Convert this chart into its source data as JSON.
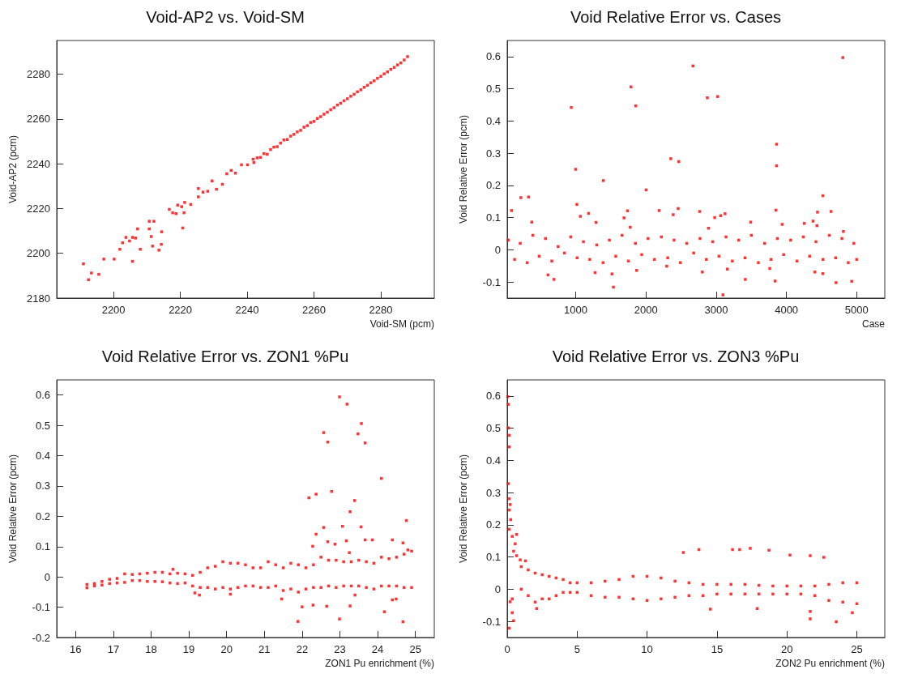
{
  "chart_data": [
    {
      "type": "scatter",
      "title": "Void-AP2 vs. Void-SM",
      "xlabel": "Void-SM (pcm)",
      "ylabel": "Void-AP2 (pcm)",
      "color": "#ff0000",
      "marker": "square",
      "xlim": [
        2183,
        2296
      ],
      "ylim": [
        2180,
        2295
      ],
      "xticks": [
        2200,
        2220,
        2240,
        2260,
        2280
      ],
      "yticks": [
        2180,
        2200,
        2220,
        2240,
        2260,
        2280
      ],
      "x": [
        2191.0,
        2192.5,
        2193.4,
        2195.6,
        2197.1,
        2200.2,
        2201.9,
        2202.7,
        2203.7,
        2204.8,
        2205.7,
        2206.6,
        2205.7,
        2207.2,
        2208.0,
        2210.7,
        2210.7,
        2211.3,
        2211.7,
        2212.1,
        2213.6,
        2214.3,
        2214.4,
        2216.7,
        2217.7,
        2218.7,
        2219.2,
        2220.4,
        2221.3,
        2220.7,
        2221.1,
        2223.1,
        2225.4,
        2225.4,
        2226.8,
        2228.2,
        2229.5,
        2230.8,
        2232.6,
        2233.9,
        2235.2,
        2236.5,
        2238.3,
        2240.1,
        2241.8,
        2242,
        2243,
        2244,
        2245,
        2246,
        2247,
        2248,
        2249,
        2250,
        2251,
        2252,
        2253,
        2254,
        2255,
        2256,
        2257,
        2258,
        2259,
        2260,
        2261,
        2262,
        2263,
        2264,
        2265,
        2266,
        2267,
        2268,
        2269,
        2270,
        2271,
        2272,
        2273,
        2274,
        2275,
        2276,
        2277,
        2278,
        2279,
        2280,
        2281,
        2282,
        2283,
        2284,
        2285,
        2286,
        2287,
        2288
      ],
      "values": [
        2195.3,
        2188.2,
        2191.2,
        2190.6,
        2197.4,
        2197.4,
        2201.8,
        2204.7,
        2207.1,
        2205.5,
        2207.1,
        2206.8,
        2196.4,
        2210.9,
        2201.8,
        2214.3,
        2210.9,
        2207.5,
        2203.2,
        2214.3,
        2201.4,
        2204.0,
        2209.6,
        2219.6,
        2218.1,
        2217.7,
        2221.5,
        2220.8,
        2222.7,
        2211.3,
        2218.1,
        2221.8,
        2228.9,
        2225.2,
        2227.3,
        2227.7,
        2232.3,
        2228.6,
        2230.8,
        2235.5,
        2237.0,
        2235.8,
        2239.5,
        2239.5,
        2242.0,
        2240.5,
        2242.6,
        2242.8,
        2244.5,
        2244.2,
        2246.3,
        2247.4,
        2247.6,
        2249.2,
        2250.6,
        2250.8,
        2252.3,
        2253.1,
        2254.2,
        2254.9,
        2256.3,
        2257.0,
        2258.4,
        2258.9,
        2260.2,
        2261.0,
        2262.1,
        2263.0,
        2264.1,
        2265.0,
        2266.2,
        2267.0,
        2268.1,
        2269.0,
        2270.1,
        2271.0,
        2272.1,
        2273.0,
        2274.1,
        2275.0,
        2276.1,
        2277.0,
        2278.1,
        2279.0,
        2280.1,
        2281.0,
        2282.1,
        2283.0,
        2284.1,
        2285.0,
        2286.3,
        2287.8
      ]
    },
    {
      "type": "scatter",
      "title": "Void Relative Error vs. Cases",
      "xlabel": "Case",
      "ylabel": "Void Relative Error (pcm)",
      "color": "#ff0000",
      "marker": "square",
      "xlim": [
        25,
        5400
      ],
      "ylim": [
        -0.15,
        0.65
      ],
      "xticks": [
        1000,
        2000,
        3000,
        4000,
        5000
      ],
      "yticks": [
        -0.1,
        0,
        0.1,
        0.2,
        0.3,
        0.4,
        0.5,
        0.6
      ],
      "x": [
        86,
        220,
        329,
        375,
        606,
        690,
        937,
        1000,
        1017,
        1067,
        1184,
        1277,
        1289,
        1394,
        1516,
        1537,
        1688,
        1738,
        1788,
        1776,
        1855,
        1868,
        2002,
        2187,
        2296,
        2354,
        2388,
        2459,
        2467,
        2669,
        2765,
        2803,
        2874,
        2891,
        2979,
        3021,
        3063,
        3126,
        3096,
        3159,
        3415,
        3491,
        3763,
        3839,
        3860,
        3860,
        3851,
        3939,
        4254,
        4379,
        4405,
        4442,
        4434,
        4518,
        4518,
        4635,
        4706,
        4803,
        4811,
        4929,
        40,
        130,
        210,
        310,
        390,
        480,
        570,
        660,
        750,
        840,
        930,
        1020,
        1110,
        1200,
        1300,
        1390,
        1480,
        1570,
        1660,
        1750,
        1850,
        1940,
        2030,
        2120,
        2220,
        2310,
        2400,
        2490,
        2580,
        2680,
        2770,
        2860,
        2950,
        3040,
        3140,
        3230,
        3320,
        3410,
        3500,
        3600,
        3690,
        3780,
        3870,
        3960,
        4060,
        4150,
        4240,
        4330,
        4420,
        4520,
        4610,
        4700,
        4790,
        4880,
        4960,
        5000
      ],
      "values": [
        0.122,
        0.162,
        0.164,
        0.086,
        -0.078,
        -0.092,
        0.442,
        0.25,
        0.141,
        0.104,
        0.113,
        -0.071,
        0.085,
        0.215,
        -0.075,
        -0.116,
        0.099,
        0.121,
        0.506,
        0.07,
        0.447,
        -0.064,
        0.186,
        0.122,
        -0.051,
        0.283,
        0.109,
        0.128,
        0.274,
        0.571,
        0.119,
        -0.069,
        0.472,
        0.067,
        0.1,
        0.476,
        0.106,
        0.112,
        -0.14,
        -0.06,
        -0.092,
        0.086,
        -0.058,
        -0.097,
        0.328,
        0.261,
        0.123,
        0.079,
        0.082,
        0.089,
        -0.069,
        0.117,
        0.075,
        -0.074,
        0.168,
        0.119,
        -0.102,
        0.597,
        0.057,
        -0.098,
        0.03,
        -0.03,
        0.02,
        -0.04,
        0.045,
        -0.02,
        0.035,
        -0.035,
        0.01,
        -0.01,
        0.04,
        -0.025,
        0.025,
        -0.03,
        0.015,
        -0.04,
        0.03,
        -0.02,
        0.045,
        -0.035,
        0.02,
        -0.015,
        0.035,
        -0.03,
        0.04,
        -0.025,
        0.03,
        -0.04,
        0.02,
        -0.01,
        0.035,
        -0.03,
        0.025,
        -0.02,
        0.04,
        -0.035,
        0.03,
        -0.025,
        0.045,
        -0.04,
        0.02,
        -0.03,
        0.035,
        -0.015,
        0.03,
        -0.035,
        0.04,
        -0.02,
        0.025,
        -0.03,
        0.045,
        -0.025,
        0.035,
        -0.04,
        0.02,
        -0.03
      ]
    },
    {
      "type": "scatter",
      "title": "Void Relative Error vs. ZON1 %Pu",
      "xlabel": "ZON1 Pu enrichment (%)",
      "ylabel": "Void Relative Error (pcm)",
      "color": "#ff0000",
      "marker": "square",
      "xlim": [
        15.5,
        25.5
      ],
      "ylim": [
        -0.2,
        0.65
      ],
      "xticks": [
        16,
        17,
        18,
        19,
        20,
        21,
        22,
        23,
        24,
        25
      ],
      "yticks": [
        -0.2,
        -0.1,
        0,
        0.1,
        0.2,
        0.3,
        0.4,
        0.5,
        0.6
      ],
      "x": [
        16.3,
        16.3,
        16.5,
        16.5,
        16.7,
        16.7,
        16.9,
        16.9,
        17.1,
        17.1,
        17.3,
        17.3,
        17.5,
        17.5,
        17.7,
        17.7,
        17.9,
        17.9,
        18.1,
        18.1,
        18.3,
        18.3,
        18.5,
        18.5,
        18.7,
        18.7,
        18.9,
        18.9,
        19.1,
        19.1,
        19.3,
        19.3,
        19.5,
        19.5,
        19.7,
        19.7,
        19.9,
        19.9,
        20.1,
        20.1,
        20.3,
        20.3,
        20.5,
        20.5,
        20.7,
        20.7,
        20.9,
        20.9,
        21.1,
        21.1,
        21.3,
        21.3,
        21.5,
        21.5,
        21.7,
        21.7,
        21.9,
        21.9,
        22.1,
        22.1,
        22.3,
        22.3,
        22.5,
        22.5,
        22.7,
        22.7,
        22.9,
        22.9,
        23.1,
        23.1,
        23.3,
        23.3,
        23.5,
        23.5,
        23.7,
        23.7,
        23.9,
        23.9,
        24.1,
        24.1,
        24.3,
        24.3,
        24.5,
        24.5,
        24.7,
        24.7,
        24.9,
        24.9,
        22.99,
        23.19,
        23.57,
        23.48,
        22.57,
        22.68,
        23.67,
        24.1,
        22.78,
        22.37,
        22.18,
        23.39,
        23.27,
        24.76,
        23.07,
        23.56,
        22.57,
        22.37,
        24.39,
        23.67,
        23.86,
        23.17,
        22.68,
        24.67,
        22.87,
        22.28,
        24.8,
        23.25,
        18.58,
        22.65,
        22.29,
        22.0,
        21.46,
        21.89,
        22.99,
        23.27,
        23.4,
        24.18,
        24.39,
        24.67,
        24.49,
        19.28,
        20.1,
        19.16
      ],
      "values": [
        -0.025,
        -0.036,
        -0.022,
        -0.03,
        -0.015,
        -0.027,
        -0.008,
        -0.022,
        -0.005,
        -0.02,
        0.01,
        -0.018,
        0.008,
        -0.012,
        0.01,
        -0.012,
        0.012,
        -0.015,
        0.015,
        -0.015,
        0.015,
        -0.016,
        0.01,
        -0.02,
        0.012,
        -0.022,
        0.01,
        -0.02,
        0.005,
        -0.03,
        0.015,
        -0.035,
        0.03,
        -0.035,
        0.035,
        -0.04,
        0.05,
        -0.035,
        0.045,
        -0.04,
        0.045,
        -0.035,
        0.04,
        -0.03,
        0.03,
        -0.03,
        0.03,
        -0.035,
        0.05,
        -0.035,
        0.04,
        -0.03,
        0.03,
        -0.045,
        0.045,
        -0.04,
        0.04,
        -0.05,
        0.03,
        -0.04,
        0.04,
        -0.035,
        0.065,
        -0.035,
        0.055,
        -0.03,
        0.055,
        -0.035,
        0.05,
        -0.03,
        0.05,
        -0.03,
        0.055,
        -0.03,
        0.05,
        -0.035,
        0.045,
        -0.04,
        0.065,
        -0.03,
        0.06,
        -0.03,
        0.065,
        -0.03,
        0.075,
        -0.035,
        0.085,
        -0.035,
        0.594,
        0.57,
        0.506,
        0.472,
        0.476,
        0.445,
        0.442,
        0.325,
        0.282,
        0.273,
        0.261,
        0.252,
        0.215,
        0.186,
        0.167,
        0.165,
        0.163,
        0.141,
        0.122,
        0.122,
        0.122,
        0.119,
        0.116,
        0.112,
        0.108,
        0.101,
        0.089,
        0.08,
        0.025,
        -0.097,
        -0.093,
        -0.099,
        -0.073,
        -0.147,
        -0.139,
        -0.096,
        -0.06,
        -0.115,
        -0.076,
        -0.148,
        -0.073,
        -0.06,
        -0.057,
        -0.053
      ]
    },
    {
      "type": "scatter",
      "title": "Void Relative Error vs. ZON3 %Pu",
      "xlabel": "ZON2 Pu enrichment (%)",
      "ylabel": "Void Relative Error (pcm)",
      "color": "#ff0000",
      "marker": "square",
      "xlim": [
        0,
        27
      ],
      "ylim": [
        -0.15,
        0.65
      ],
      "xticks": [
        0,
        5,
        10,
        15,
        20,
        25
      ],
      "yticks": [
        -0.1,
        0,
        0.1,
        0.2,
        0.3,
        0.4,
        0.5,
        0.6
      ],
      "x": [
        0.04,
        0.08,
        0.15,
        0.08,
        0.15,
        0.08,
        0.15,
        0.21,
        0.15,
        0.25,
        0.15,
        0.36,
        0.67,
        0.57,
        0.46,
        0.67,
        0.93,
        1.31,
        0.15,
        0.36,
        0.46,
        0.21,
        0.36,
        12.59,
        13.71,
        16.11,
        16.62,
        17.38,
        18.72,
        20.22,
        21.67,
        22.64,
        17.88,
        14.53,
        2.11,
        21.67,
        23.53,
        24.68,
        21.67,
        1.0,
        1.0,
        1.5,
        1.5,
        2.0,
        2.0,
        2.5,
        2.5,
        3.0,
        3.0,
        3.5,
        3.5,
        4.0,
        4.0,
        4.5,
        4.5,
        5,
        5,
        6,
        6,
        7,
        7,
        8,
        8,
        9,
        9,
        10,
        10,
        11,
        11,
        12,
        12,
        13,
        13,
        14,
        14,
        15,
        15,
        16,
        16,
        17,
        17,
        18,
        18,
        19,
        19,
        20,
        20,
        21,
        21,
        22,
        22,
        23,
        23,
        24,
        24,
        25,
        25
      ],
      "values": [
        0.598,
        0.574,
        0.478,
        0.501,
        0.442,
        0.328,
        0.281,
        0.263,
        0.246,
        0.216,
        0.186,
        0.164,
        0.17,
        0.141,
        0.118,
        0.104,
        0.091,
        0.088,
        -0.121,
        -0.073,
        -0.098,
        -0.039,
        -0.03,
        0.114,
        0.123,
        0.123,
        0.123,
        0.127,
        0.121,
        0.106,
        0.104,
        0.099,
        -0.06,
        -0.062,
        -0.06,
        -0.092,
        -0.101,
        -0.073,
        -0.069,
        0.07,
        0.0,
        0.06,
        -0.02,
        0.05,
        -0.04,
        0.045,
        -0.03,
        0.04,
        -0.03,
        0.035,
        -0.02,
        0.03,
        -0.01,
        0.02,
        -0.01,
        0.02,
        -0.01,
        0.02,
        -0.02,
        0.025,
        -0.025,
        0.03,
        -0.025,
        0.04,
        -0.03,
        0.04,
        -0.035,
        0.035,
        -0.03,
        0.025,
        -0.025,
        0.02,
        -0.02,
        0.015,
        -0.02,
        0.015,
        -0.015,
        0.015,
        -0.015,
        0.015,
        -0.015,
        0.012,
        -0.015,
        0.01,
        -0.015,
        0.01,
        -0.015,
        0.01,
        -0.015,
        0.01,
        -0.02,
        0.015,
        -0.035,
        0.02,
        -0.04,
        0.02,
        -0.045
      ]
    }
  ]
}
